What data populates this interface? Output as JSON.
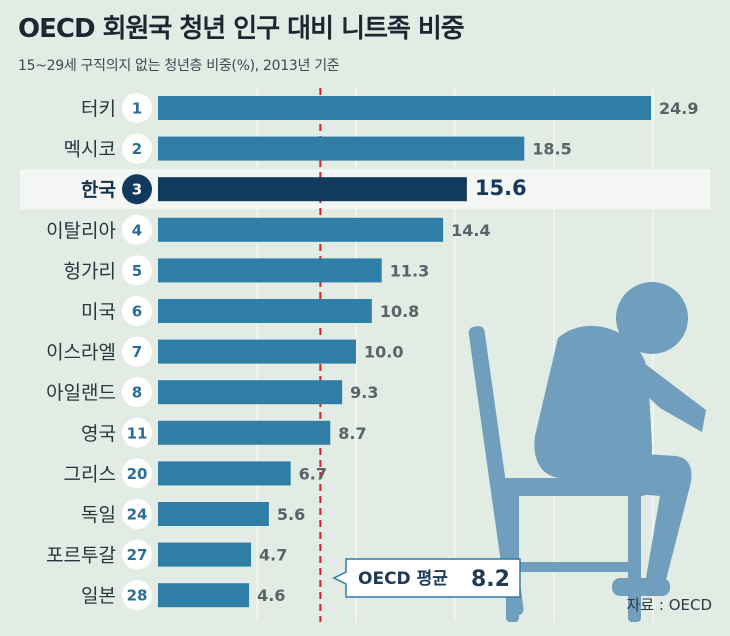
{
  "title": "OECD 회원국 청년 인구 대비 니트족 비중",
  "subtitle": "15~29세 구직의지 없는 청년층 비중(%), 2013년 기준",
  "source": "자료 : OECD",
  "chart_data": {
    "type": "bar",
    "orientation": "horizontal",
    "categories": [
      "터키",
      "멕시코",
      "한국",
      "이탈리아",
      "헝가리",
      "미국",
      "이스라엘",
      "아일랜드",
      "영국",
      "그리스",
      "독일",
      "포르투갈",
      "일본"
    ],
    "ranks": [
      "1",
      "2",
      "3",
      "4",
      "5",
      "6",
      "7",
      "8",
      "11",
      "20",
      "24",
      "27",
      "28"
    ],
    "values": [
      24.9,
      18.5,
      15.6,
      14.4,
      11.3,
      10.8,
      10.0,
      9.3,
      8.7,
      6.7,
      5.6,
      4.7,
      4.6
    ],
    "value_labels": [
      "24.9",
      "18.5",
      "15.6",
      "14.4",
      "11.3",
      "10.8",
      "10.0",
      "9.3",
      "8.7",
      "6.7",
      "5.6",
      "4.7",
      "4.6"
    ],
    "highlight": "한국",
    "average": {
      "label": "OECD 평균",
      "value": 8.2,
      "value_label": "8.2"
    },
    "xlim": [
      0,
      28
    ],
    "grid": true,
    "colors": {
      "bar": "#2f7ea6",
      "highlight_bar": "#113a5c",
      "average_line": "#d61f28",
      "background": "#e2ebe4",
      "icon": "#6f9fbd"
    }
  }
}
